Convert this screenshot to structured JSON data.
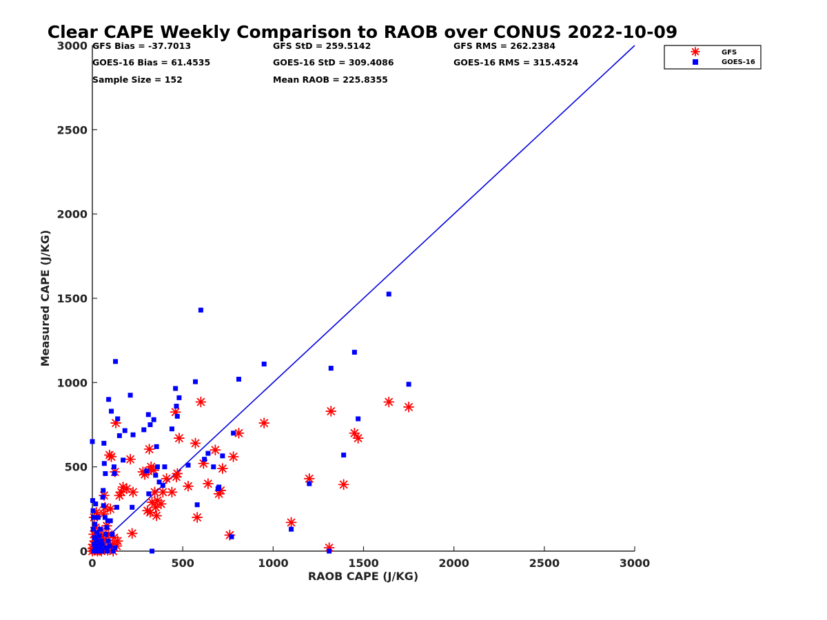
{
  "chart_data": {
    "type": "scatter",
    "title": "Clear CAPE Weekly Comparison to RAOB over CONUS 2022-10-09",
    "xlabel": "RAOB CAPE (J/KG)",
    "ylabel": "Measured CAPE (J/KG)",
    "xlim": [
      0,
      3000
    ],
    "ylim": [
      0,
      3000
    ],
    "xticks": [
      "0",
      "500",
      "1000",
      "1500",
      "2000",
      "2500",
      "3000"
    ],
    "yticks": [
      "0",
      "500",
      "1000",
      "1500",
      "2000",
      "2500",
      "3000"
    ],
    "grid": false,
    "legend_position": "top-right",
    "colors": {
      "gfs": "#ff0000",
      "goes": "#0000ff",
      "line": "#0000dd"
    },
    "stats": {
      "gfs_bias": "GFS Bias = -37.7013",
      "gfs_std": "GFS StD = 259.5142",
      "gfs_rms": "GFS RMS = 262.2384",
      "goes_bias": "GOES-16 Bias = 61.4535",
      "goes_std": "GOES-16 StD = 309.4086",
      "goes_rms": "GOES-16 RMS = 315.4524",
      "sample_size": "Sample Size = 152",
      "mean_raob": "Mean RAOB = 225.8355"
    },
    "reference_line": {
      "x": [
        0,
        3000
      ],
      "y": [
        0,
        3000
      ]
    },
    "series": [
      {
        "name": "GFS",
        "marker": "asterisk",
        "points": [
          [
            0,
            0
          ],
          [
            3,
            15
          ],
          [
            5,
            40
          ],
          [
            8,
            100
          ],
          [
            10,
            200
          ],
          [
            12,
            5
          ],
          [
            15,
            60
          ],
          [
            18,
            140
          ],
          [
            20,
            10
          ],
          [
            22,
            230
          ],
          [
            25,
            30
          ],
          [
            28,
            0
          ],
          [
            30,
            80
          ],
          [
            35,
            20
          ],
          [
            38,
            120
          ],
          [
            40,
            5
          ],
          [
            45,
            50
          ],
          [
            50,
            0
          ],
          [
            55,
            90
          ],
          [
            60,
            30
          ],
          [
            62,
            220
          ],
          [
            65,
            330
          ],
          [
            68,
            10
          ],
          [
            70,
            260
          ],
          [
            75,
            60
          ],
          [
            80,
            150
          ],
          [
            85,
            5
          ],
          [
            90,
            100
          ],
          [
            95,
            570
          ],
          [
            100,
            250
          ],
          [
            105,
            560
          ],
          [
            110,
            40
          ],
          [
            115,
            0
          ],
          [
            120,
            80
          ],
          [
            125,
            470
          ],
          [
            130,
            760
          ],
          [
            135,
            30
          ],
          [
            140,
            60
          ],
          [
            150,
            330
          ],
          [
            160,
            350
          ],
          [
            170,
            380
          ],
          [
            190,
            370
          ],
          [
            210,
            545
          ],
          [
            220,
            105
          ],
          [
            225,
            350
          ],
          [
            280,
            470
          ],
          [
            290,
            455
          ],
          [
            305,
            240
          ],
          [
            310,
            475
          ],
          [
            315,
            605
          ],
          [
            320,
            230
          ],
          [
            325,
            500
          ],
          [
            330,
            290
          ],
          [
            340,
            480
          ],
          [
            345,
            350
          ],
          [
            350,
            260
          ],
          [
            355,
            210
          ],
          [
            360,
            300
          ],
          [
            380,
            280
          ],
          [
            390,
            350
          ],
          [
            410,
            430
          ],
          [
            440,
            350
          ],
          [
            460,
            825
          ],
          [
            465,
            440
          ],
          [
            470,
            460
          ],
          [
            480,
            670
          ],
          [
            530,
            385
          ],
          [
            570,
            640
          ],
          [
            580,
            200
          ],
          [
            600,
            885
          ],
          [
            615,
            520
          ],
          [
            640,
            400
          ],
          [
            680,
            600
          ],
          [
            700,
            340
          ],
          [
            710,
            360
          ],
          [
            720,
            490
          ],
          [
            760,
            95
          ],
          [
            780,
            560
          ],
          [
            810,
            700
          ],
          [
            950,
            760
          ],
          [
            1100,
            170
          ],
          [
            1200,
            430
          ],
          [
            1310,
            20
          ],
          [
            1320,
            830
          ],
          [
            1390,
            395
          ],
          [
            1450,
            700
          ],
          [
            1470,
            670
          ],
          [
            1640,
            885
          ],
          [
            1750,
            855
          ]
        ]
      },
      {
        "name": "GOES-16",
        "marker": "square",
        "points": [
          [
            0,
            650
          ],
          [
            2,
            300
          ],
          [
            4,
            240
          ],
          [
            5,
            130
          ],
          [
            6,
            200
          ],
          [
            8,
            0
          ],
          [
            10,
            40
          ],
          [
            12,
            80
          ],
          [
            14,
            160
          ],
          [
            16,
            20
          ],
          [
            18,
            280
          ],
          [
            20,
            5
          ],
          [
            22,
            60
          ],
          [
            25,
            110
          ],
          [
            28,
            0
          ],
          [
            30,
            30
          ],
          [
            32,
            200
          ],
          [
            35,
            0
          ],
          [
            38,
            90
          ],
          [
            40,
            50
          ],
          [
            42,
            20
          ],
          [
            45,
            130
          ],
          [
            48,
            10
          ],
          [
            50,
            60
          ],
          [
            52,
            0
          ],
          [
            55,
            40
          ],
          [
            58,
            320
          ],
          [
            60,
            360
          ],
          [
            62,
            270
          ],
          [
            64,
            640
          ],
          [
            66,
            520
          ],
          [
            70,
            200
          ],
          [
            72,
            460
          ],
          [
            74,
            100
          ],
          [
            76,
            20
          ],
          [
            80,
            140
          ],
          [
            82,
            0
          ],
          [
            85,
            180
          ],
          [
            88,
            60
          ],
          [
            90,
            900
          ],
          [
            95,
            30
          ],
          [
            100,
            180
          ],
          [
            105,
            830
          ],
          [
            110,
            100
          ],
          [
            115,
            0
          ],
          [
            120,
            500
          ],
          [
            122,
            460
          ],
          [
            125,
            20
          ],
          [
            128,
            1125
          ],
          [
            135,
            260
          ],
          [
            140,
            785
          ],
          [
            150,
            685
          ],
          [
            170,
            540
          ],
          [
            180,
            715
          ],
          [
            210,
            925
          ],
          [
            220,
            260
          ],
          [
            225,
            690
          ],
          [
            285,
            720
          ],
          [
            300,
            475
          ],
          [
            310,
            810
          ],
          [
            312,
            340
          ],
          [
            320,
            750
          ],
          [
            330,
            0
          ],
          [
            340,
            780
          ],
          [
            350,
            450
          ],
          [
            355,
            620
          ],
          [
            360,
            500
          ],
          [
            370,
            410
          ],
          [
            390,
            390
          ],
          [
            400,
            500
          ],
          [
            440,
            725
          ],
          [
            460,
            965
          ],
          [
            465,
            860
          ],
          [
            470,
            800
          ],
          [
            480,
            910
          ],
          [
            530,
            510
          ],
          [
            570,
            1005
          ],
          [
            580,
            275
          ],
          [
            600,
            1430
          ],
          [
            620,
            545
          ],
          [
            640,
            580
          ],
          [
            670,
            500
          ],
          [
            695,
            370
          ],
          [
            700,
            380
          ],
          [
            720,
            565
          ],
          [
            770,
            85
          ],
          [
            780,
            700
          ],
          [
            810,
            1020
          ],
          [
            950,
            1110
          ],
          [
            1100,
            130
          ],
          [
            1200,
            400
          ],
          [
            1310,
            0
          ],
          [
            1320,
            1085
          ],
          [
            1390,
            570
          ],
          [
            1450,
            1180
          ],
          [
            1470,
            785
          ],
          [
            1640,
            1525
          ],
          [
            1750,
            990
          ]
        ]
      }
    ]
  }
}
